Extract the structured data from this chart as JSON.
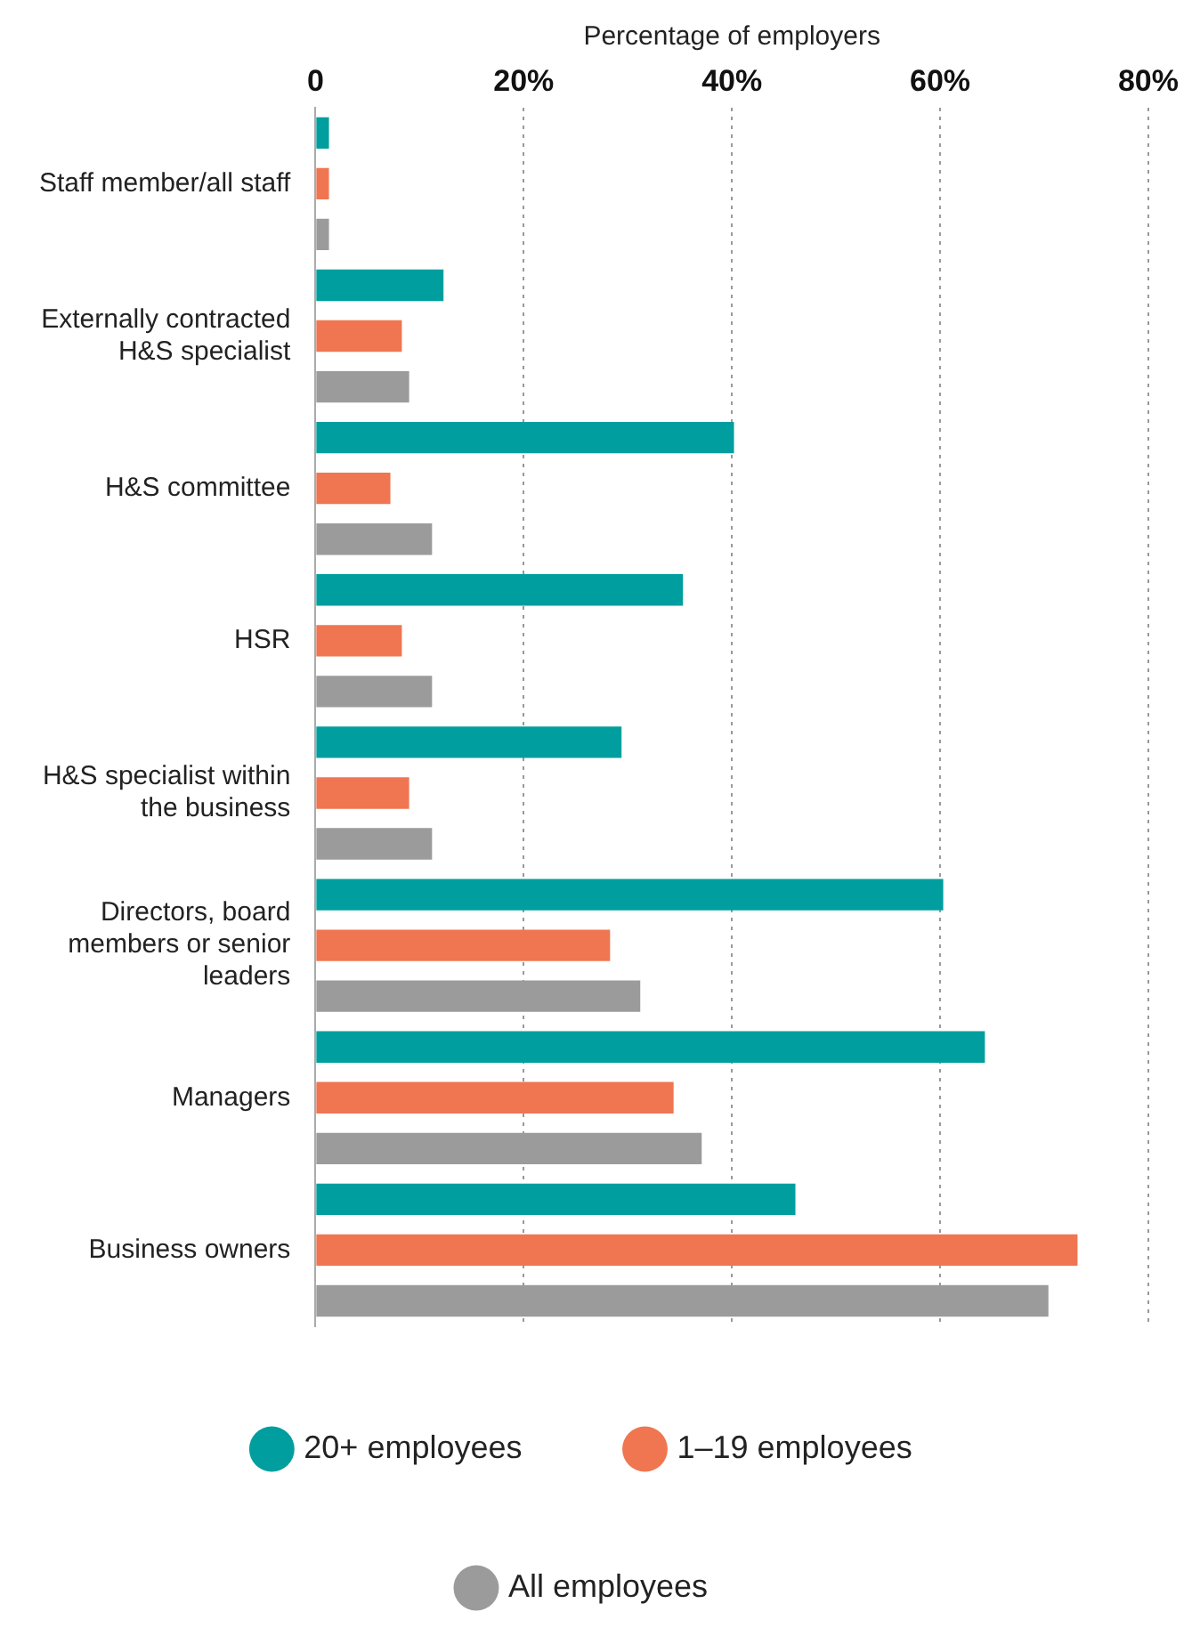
{
  "chart_data": {
    "type": "bar",
    "orientation": "horizontal",
    "xlabel": "Percentage of employers",
    "categories": [
      "Staff member/all staff",
      "Externally contracted H&S specialist",
      "H&S committee",
      "HSR",
      "H&S specialist within the business",
      "Directors, board members or senior leaders",
      "Managers",
      "Business owners"
    ],
    "series": [
      {
        "name": "20+ employees",
        "color": "#009e9e",
        "values": [
          1.3,
          12.3,
          40.2,
          35.3,
          29.4,
          60.3,
          64.3,
          46.1
        ]
      },
      {
        "name": "1–19 employees",
        "color": "#ef7651",
        "values": [
          1.3,
          8.3,
          7.2,
          8.3,
          9,
          28.3,
          34.4,
          73.2
        ]
      },
      {
        "name": "All employees",
        "color": "#9b9b9b",
        "values": [
          1.3,
          9,
          11.2,
          11.2,
          11.2,
          31.2,
          37.1,
          70.4
        ]
      }
    ],
    "xlim": [
      0,
      80
    ],
    "xticks": [
      0,
      {
        "value": 20,
        "label": "20%"
      },
      {
        "value": 40,
        "label": "40%"
      },
      {
        "value": 60,
        "label": "60%"
      },
      {
        "value": 80,
        "label": "80%"
      }
    ],
    "grid": "x",
    "legend": "bottom"
  }
}
